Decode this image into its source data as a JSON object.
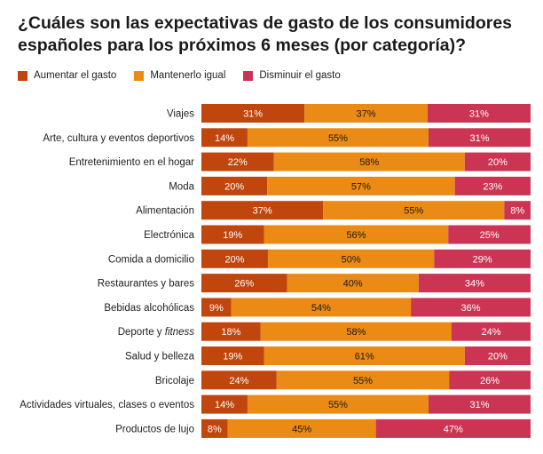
{
  "chart_data": {
    "type": "bar",
    "orientation": "horizontal",
    "stacked": true,
    "title": "¿Cuáles son las expectativas de gasto de los consumidores españoles para los próximos 6 meses (por categoría)?",
    "categories": [
      "Viajes",
      "Arte, cultura y eventos deportivos",
      "Entretenimiento en el hogar",
      "Moda",
      "Alimentación",
      "Electrónica",
      "Comida a domicilio",
      "Restaurantes y bares",
      "Bebidas alcohólicas",
      "Deporte y fitness",
      "Salud y belleza",
      "Bricolaje",
      "Actividades virtuales, clases o eventos",
      "Productos de lujo"
    ],
    "series": [
      {
        "name": "Aumentar el gasto",
        "color": "#c0460e",
        "label_color": "#ffffff",
        "values": [
          31,
          14,
          22,
          20,
          37,
          19,
          20,
          26,
          9,
          18,
          19,
          24,
          14,
          8
        ]
      },
      {
        "name": "Mantenerlo igual",
        "color": "#eb8a14",
        "label_color": "#1a1a1a",
        "values": [
          37,
          55,
          58,
          57,
          55,
          56,
          50,
          40,
          54,
          58,
          61,
          55,
          55,
          45
        ]
      },
      {
        "name": "Disminuir el gasto",
        "color": "#cb3553",
        "label_color": "#ffffff",
        "values": [
          31,
          31,
          20,
          23,
          8,
          25,
          29,
          34,
          36,
          24,
          20,
          26,
          31,
          47
        ]
      }
    ],
    "value_suffix": "%",
    "legend_position": "top-left",
    "grid": false
  }
}
